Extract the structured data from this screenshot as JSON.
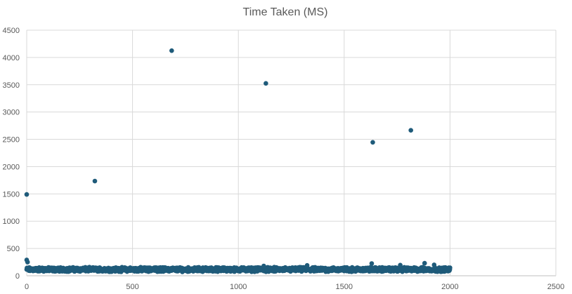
{
  "chart_data": {
    "type": "scatter",
    "title": "Time Taken (MS)",
    "xlabel": "",
    "ylabel": "",
    "xlim": [
      0,
      2500
    ],
    "ylim": [
      0,
      4500
    ],
    "x_ticks": [
      0,
      500,
      1000,
      1500,
      2000,
      2500
    ],
    "y_ticks": [
      0,
      500,
      1000,
      1500,
      2000,
      2500,
      3000,
      3500,
      4000,
      4500
    ],
    "grid": true,
    "legend": "none",
    "marker_color": "#1f5b7a",
    "outliers": [
      {
        "x": 0,
        "y": 1490
      },
      {
        "x": 322,
        "y": 1735
      },
      {
        "x": 685,
        "y": 4125
      },
      {
        "x": 1130,
        "y": 3525
      },
      {
        "x": 1635,
        "y": 2445
      },
      {
        "x": 1815,
        "y": 2665
      }
    ],
    "near_baseline_points": {
      "x_range": [
        0,
        2000
      ],
      "typical_y_range": [
        70,
        160
      ],
      "count": 2000,
      "highlights": [
        {
          "x": 0,
          "y": 290
        },
        {
          "x": 4,
          "y": 250
        },
        {
          "x": 1120,
          "y": 180
        },
        {
          "x": 1325,
          "y": 190
        },
        {
          "x": 1630,
          "y": 225
        },
        {
          "x": 1765,
          "y": 195
        },
        {
          "x": 1880,
          "y": 230
        },
        {
          "x": 1925,
          "y": 200
        }
      ]
    }
  }
}
